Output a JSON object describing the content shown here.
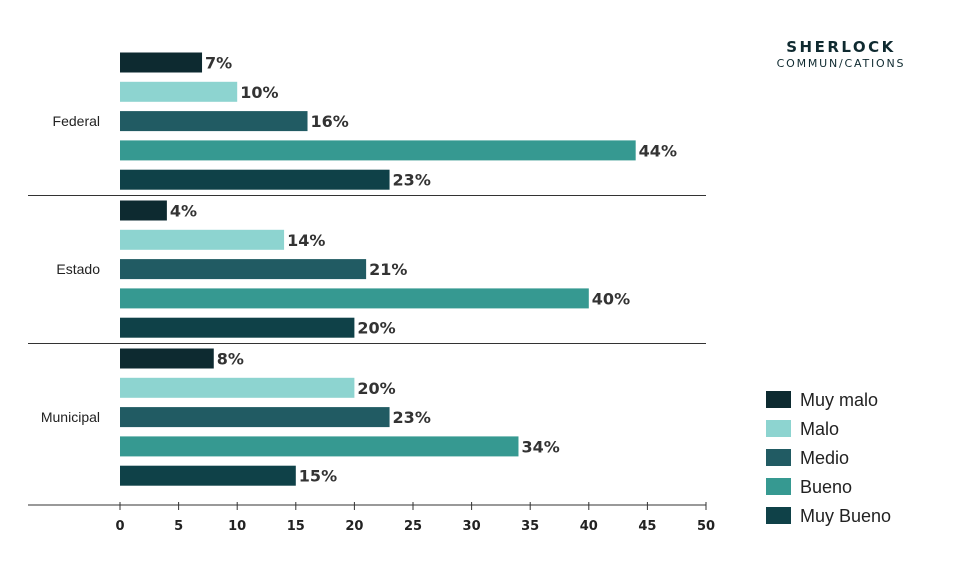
{
  "brand": {
    "line1": "SHERLOCK",
    "line2": "COMMUN/CATIONS"
  },
  "colors": {
    "Muy malo": "#0d2a30",
    "Malo": "#8dd4d0",
    "Medio": "#215b63",
    "Bueno": "#369991",
    "Muy Bueno": "#0f4148",
    "text": "#333333",
    "axis": "#333333"
  },
  "chart_data": {
    "type": "bar",
    "orientation": "horizontal",
    "title": "",
    "xlabel": "",
    "ylabel": "",
    "xlim": [
      0,
      50
    ],
    "x_ticks": [
      0,
      5,
      10,
      15,
      20,
      25,
      30,
      35,
      40,
      45,
      50
    ],
    "categories": [
      "Federal",
      "Estado",
      "Municipal"
    ],
    "value_suffix": "%",
    "legend_position": "bottom-right",
    "grid": false,
    "series": [
      {
        "name": "Muy malo",
        "values": [
          7,
          4,
          8
        ],
        "labels": [
          "7%",
          "4%",
          "8%"
        ]
      },
      {
        "name": "Malo",
        "values": [
          10,
          14,
          20
        ],
        "labels": [
          "10%",
          "14%",
          "20%"
        ]
      },
      {
        "name": "Medio",
        "values": [
          16,
          21,
          23
        ],
        "labels": [
          "16%",
          "21%",
          "23%"
        ]
      },
      {
        "name": "Bueno",
        "values": [
          44,
          40,
          34
        ],
        "labels": [
          "44%",
          "40%",
          "34%"
        ]
      },
      {
        "name": "Muy Bueno",
        "values": [
          23,
          20,
          15
        ],
        "labels": [
          "23%",
          "20%",
          "15%"
        ]
      }
    ]
  }
}
